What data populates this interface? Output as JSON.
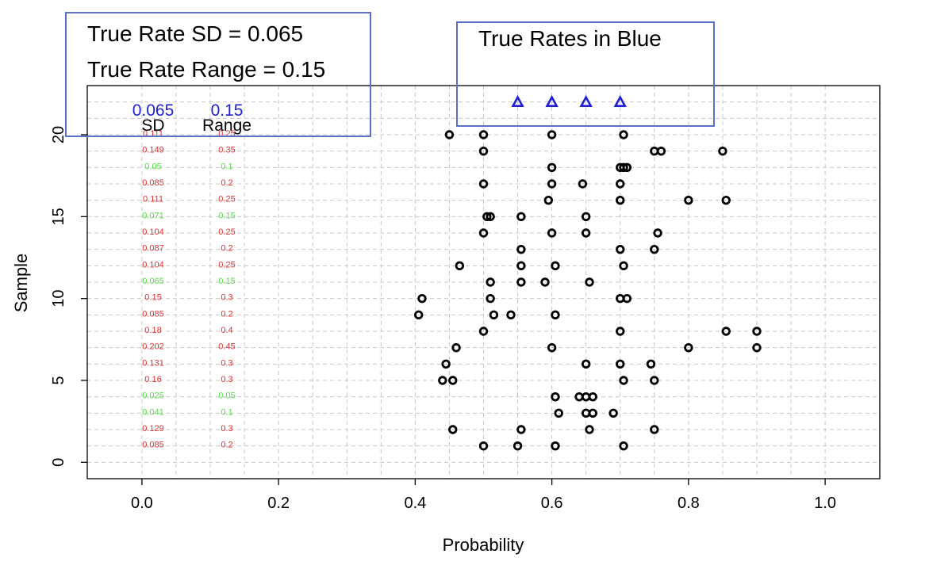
{
  "colors": {
    "point": "#000000",
    "true_rate": "#1f1fd6",
    "within_range": "#55dd44",
    "outside_range": "#e03030",
    "grid": "#c8c8c8",
    "box_border": "#5a6fc9"
  },
  "annotations": {
    "info_box": {
      "line1": "True Rate SD = 0.065",
      "line2": "True Rate Range = 0.15"
    },
    "true_rates_box": {
      "text": "True Rates in Blue"
    }
  },
  "table": {
    "sd_header": "SD",
    "range_header": "Range",
    "sd_reference": "0.065",
    "range_reference": "0.15",
    "rows": [
      {
        "sample": 20,
        "sd": "0.111",
        "range": "0.25",
        "status": "out"
      },
      {
        "sample": 19,
        "sd": "0.149",
        "range": "0.35",
        "status": "out"
      },
      {
        "sample": 18,
        "sd": "0.05",
        "range": "0.1",
        "status": "in"
      },
      {
        "sample": 17,
        "sd": "0.085",
        "range": "0.2",
        "status": "out"
      },
      {
        "sample": 16,
        "sd": "0.111",
        "range": "0.25",
        "status": "out"
      },
      {
        "sample": 15,
        "sd": "0.071",
        "range": "0.15",
        "status": "in"
      },
      {
        "sample": 14,
        "sd": "0.104",
        "range": "0.25",
        "status": "out"
      },
      {
        "sample": 13,
        "sd": "0.087",
        "range": "0.2",
        "status": "out"
      },
      {
        "sample": 12,
        "sd": "0.104",
        "range": "0.25",
        "status": "out"
      },
      {
        "sample": 11,
        "sd": "0.065",
        "range": "0.15",
        "status": "in"
      },
      {
        "sample": 10,
        "sd": "0.15",
        "range": "0.3",
        "status": "out"
      },
      {
        "sample": 9,
        "sd": "0.085",
        "range": "0.2",
        "status": "out"
      },
      {
        "sample": 8,
        "sd": "0.18",
        "range": "0.4",
        "status": "out"
      },
      {
        "sample": 7,
        "sd": "0.202",
        "range": "0.45",
        "status": "out"
      },
      {
        "sample": 6,
        "sd": "0.131",
        "range": "0.3",
        "status": "out"
      },
      {
        "sample": 5,
        "sd": "0.16",
        "range": "0.3",
        "status": "out"
      },
      {
        "sample": 4,
        "sd": "0.025",
        "range": "0.05",
        "status": "in"
      },
      {
        "sample": 3,
        "sd": "0.041",
        "range": "0.1",
        "status": "in"
      },
      {
        "sample": 2,
        "sd": "0.129",
        "range": "0.3",
        "status": "out"
      },
      {
        "sample": 1,
        "sd": "0.085",
        "range": "0.2",
        "status": "out"
      }
    ]
  },
  "chart_data": {
    "type": "scatter",
    "title": "",
    "xlabel": "Probability",
    "ylabel": "Sample",
    "xlim": [
      -0.08,
      1.08
    ],
    "ylim": [
      -1,
      23
    ],
    "x_ticks": [
      "0.0",
      "0.2",
      "0.4",
      "0.6",
      "0.8",
      "1.0"
    ],
    "x_tick_values": [
      0,
      0.2,
      0.4,
      0.6,
      0.8,
      1.0
    ],
    "y_ticks": [
      "0",
      "5",
      "10",
      "15",
      "20"
    ],
    "y_tick_values": [
      0,
      5,
      10,
      15,
      20
    ],
    "grid": true,
    "true_rates": {
      "y": 22,
      "x": [
        0.55,
        0.6,
        0.65,
        0.7
      ]
    },
    "series": [
      {
        "sample": 20,
        "x": [
          0.45,
          0.5,
          0.6,
          0.705
        ]
      },
      {
        "sample": 19,
        "x": [
          0.5,
          0.75,
          0.76,
          0.85
        ]
      },
      {
        "sample": 18,
        "x": [
          0.6,
          0.7,
          0.705,
          0.71
        ]
      },
      {
        "sample": 17,
        "x": [
          0.5,
          0.6,
          0.645,
          0.7
        ]
      },
      {
        "sample": 16,
        "x": [
          0.595,
          0.7,
          0.8,
          0.855
        ]
      },
      {
        "sample": 15,
        "x": [
          0.505,
          0.51,
          0.555,
          0.65
        ]
      },
      {
        "sample": 14,
        "x": [
          0.5,
          0.6,
          0.65,
          0.755
        ]
      },
      {
        "sample": 13,
        "x": [
          0.555,
          0.7,
          0.75
        ]
      },
      {
        "sample": 12,
        "x": [
          0.465,
          0.555,
          0.605,
          0.705
        ]
      },
      {
        "sample": 11,
        "x": [
          0.51,
          0.555,
          0.59,
          0.655
        ]
      },
      {
        "sample": 10,
        "x": [
          0.41,
          0.51,
          0.7,
          0.71
        ]
      },
      {
        "sample": 9,
        "x": [
          0.405,
          0.515,
          0.54,
          0.605
        ]
      },
      {
        "sample": 8,
        "x": [
          0.5,
          0.7,
          0.855,
          0.9
        ]
      },
      {
        "sample": 7,
        "x": [
          0.46,
          0.6,
          0.8,
          0.9
        ]
      },
      {
        "sample": 6,
        "x": [
          0.445,
          0.65,
          0.7,
          0.745
        ]
      },
      {
        "sample": 5,
        "x": [
          0.44,
          0.455,
          0.705,
          0.75
        ]
      },
      {
        "sample": 4,
        "x": [
          0.605,
          0.64,
          0.65,
          0.66
        ]
      },
      {
        "sample": 3,
        "x": [
          0.61,
          0.65,
          0.66,
          0.69
        ]
      },
      {
        "sample": 2,
        "x": [
          0.455,
          0.555,
          0.655,
          0.75
        ]
      },
      {
        "sample": 1,
        "x": [
          0.5,
          0.55,
          0.605,
          0.705
        ]
      }
    ]
  }
}
